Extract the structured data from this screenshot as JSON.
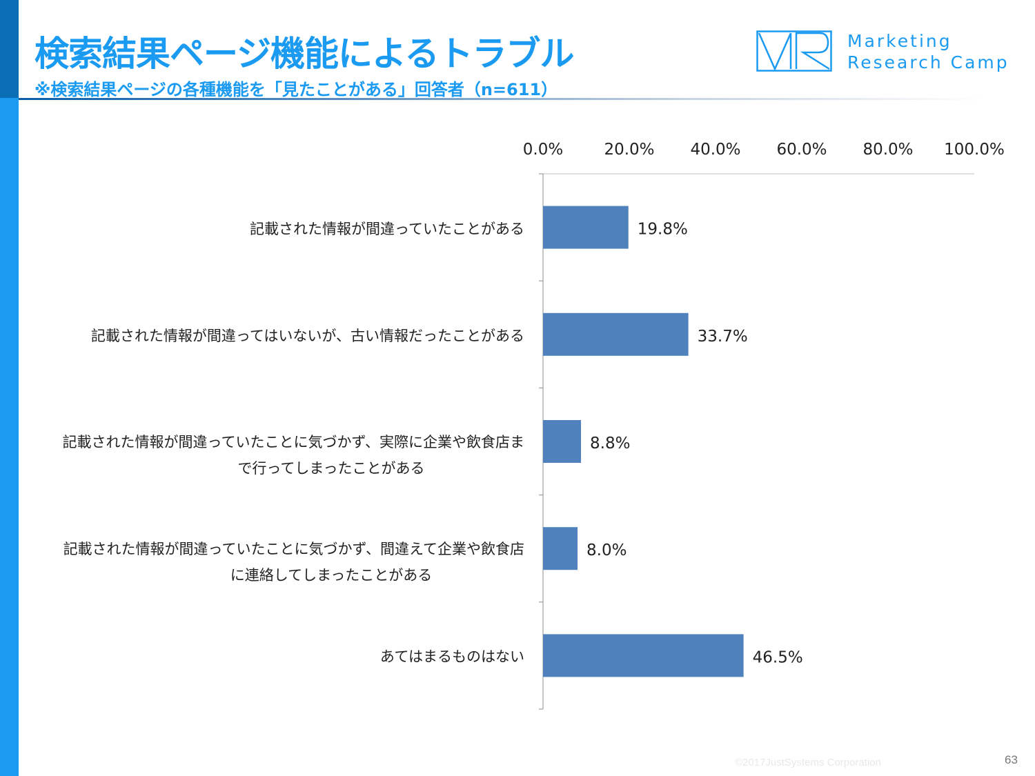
{
  "header": {
    "title": "検索結果ページ機能によるトラブル",
    "subtitle": "※検索結果ページの各種機能を「見たことがある」回答者（n=611）"
  },
  "logo": {
    "line1": "Marketing",
    "line2": "Research Camp",
    "mark_text": "MR",
    "color": "#1a9af0"
  },
  "chart_data": {
    "type": "bar",
    "orientation": "horizontal",
    "title": "",
    "xlabel": "",
    "ylabel": "",
    "xlim": [
      0,
      100
    ],
    "tick_labels": [
      "0.0%",
      "20.0%",
      "40.0%",
      "60.0%",
      "80.0%",
      "100.0%"
    ],
    "tick_values": [
      0,
      20,
      40,
      60,
      80,
      100
    ],
    "categories": [
      [
        "記載された情報が間違っていたことがある"
      ],
      [
        "記載された情報が間違ってはいないが、古い情報だったことがある"
      ],
      [
        "記載された情報が間違っていたことに気づかず、実際に企業や飲食店ま",
        "で行ってしまったことがある"
      ],
      [
        "記載された情報が間違っていたことに気づかず、間違えて企業や飲食店",
        "に連絡してしまったことがある"
      ],
      [
        "あてはまるものはない"
      ]
    ],
    "values": [
      19.8,
      33.7,
      8.8,
      8.0,
      46.5
    ],
    "value_labels": [
      "19.8%",
      "33.7%",
      "8.8%",
      "8.0%",
      "46.5%"
    ],
    "bar_color": "#4f81bd",
    "grid": false
  },
  "footer": {
    "copyright": "©2017JustSystems Corporation",
    "page_number": "63"
  }
}
